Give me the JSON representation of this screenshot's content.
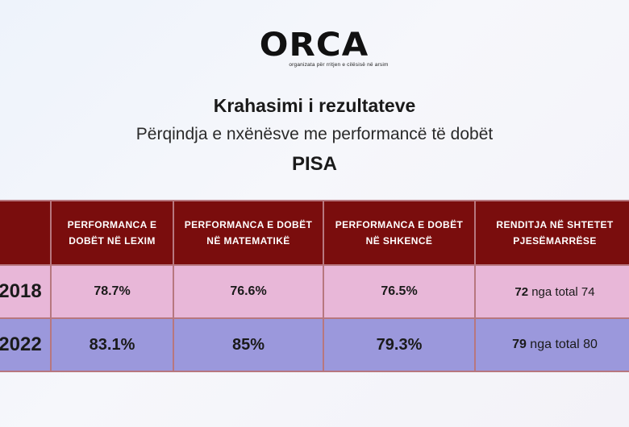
{
  "logo": {
    "word": "ORCA",
    "tagline": "organizata për rritjen e cilësisë në arsim"
  },
  "title": "Krahasimi i rezultateve",
  "subtitle": "Përqindja e nxënësve me performancë të dobët",
  "heading": "PISA",
  "table": {
    "headers": [
      "",
      "PERFORMANCA E DOBËT NË LEXIM",
      "PERFORMANCA E DOBËT NË MATEMATIKË",
      "PERFORMANCA E DOBËT NË SHKENCË",
      "RENDITJA NË SHTETET PJESËMARRËSE"
    ],
    "rows": [
      {
        "year": "2018",
        "reading": "78.7%",
        "math": "76.6%",
        "science": "76.5%",
        "rank": "72",
        "rank_suffix": " nga total 74"
      },
      {
        "year": "2022",
        "reading": "83.1%",
        "math": "85%",
        "science": "79.3%",
        "rank": "79",
        "rank_suffix": " nga total 80"
      }
    ]
  },
  "colors": {
    "header": "#7a0d0d",
    "row_2018": "#e8b7d8",
    "row_2022": "#9b98dc"
  }
}
